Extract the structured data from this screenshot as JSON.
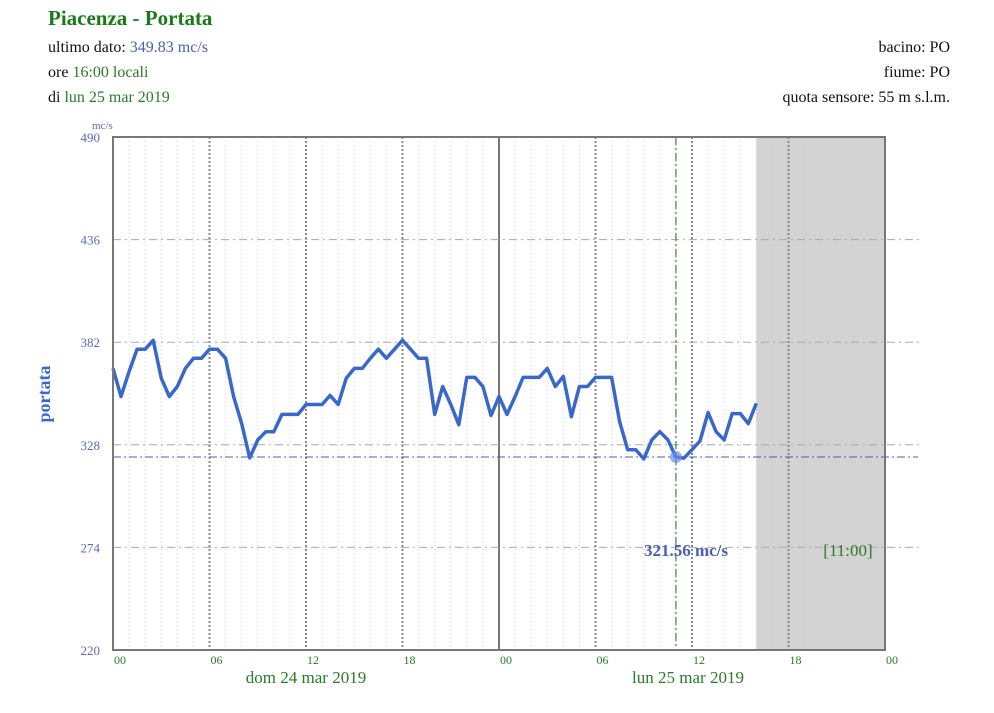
{
  "header": {
    "title": "Piacenza - Portata",
    "last_label": "ultimo dato:",
    "last_value": "349.83 mc/s",
    "time_prefix": "ore",
    "time_value": "16:00 locali",
    "date_prefix": "di",
    "date_value": "lun 25 mar 2019",
    "basin": "bacino: PO",
    "river": "fiume: PO",
    "sensor_altitude": "quota sensore: 55 m s.l.m."
  },
  "colors": {
    "line": "#3a68c8",
    "accent_green": "#2a7a2a",
    "future_shade": "#d3d3d3"
  },
  "chart_data": {
    "type": "line",
    "title": "Piacenza - Portata",
    "ylabel": "portata",
    "yunit": "mc/s",
    "ylim": [
      220,
      490
    ],
    "yticks": [
      "490",
      "436",
      "382",
      "328",
      "274",
      "220"
    ],
    "xlim_hours": [
      0,
      48
    ],
    "xticks": [
      "00",
      "06",
      "12",
      "18",
      "00",
      "06",
      "12",
      "18",
      "00"
    ],
    "day_labels": [
      "dom 24 mar 2019",
      "lun 25 mar 2019"
    ],
    "grid": true,
    "x_hours_step": 0.5,
    "x_start": "dom 24 mar 2019 00:00",
    "values": [
      368.2,
      353.4,
      366.6,
      378.3,
      378.3,
      383,
      363,
      353.4,
      358.7,
      368.2,
      373.5,
      373.5,
      378.3,
      378.3,
      373.5,
      353.4,
      339.1,
      321.1,
      330.6,
      334.9,
      334.9,
      344,
      344,
      344,
      349.2,
      349.2,
      349.2,
      354,
      349.2,
      363,
      368.2,
      368.2,
      373.5,
      378.3,
      373.5,
      378.3,
      383,
      378.3,
      373.5,
      373.5,
      344,
      358.7,
      349.2,
      338.6,
      363.5,
      363.5,
      358.7,
      343.4,
      353.4,
      344,
      353.4,
      363.5,
      363.5,
      363.5,
      368.2,
      358.7,
      364,
      342.8,
      358.7,
      358.7,
      363.5,
      363.5,
      363.5,
      340.2,
      325.4,
      325.4,
      320.6,
      330.6,
      334.9,
      330.6,
      321.56,
      321,
      325.4,
      330,
      345,
      334.9,
      330.6,
      344.4,
      344.4,
      339.1,
      349.83
    ],
    "future_from_hour": 40,
    "cursor": {
      "hour": 35,
      "value": 321.56,
      "value_label": "321.56 mc/s",
      "time_label": "[11:00]"
    }
  }
}
